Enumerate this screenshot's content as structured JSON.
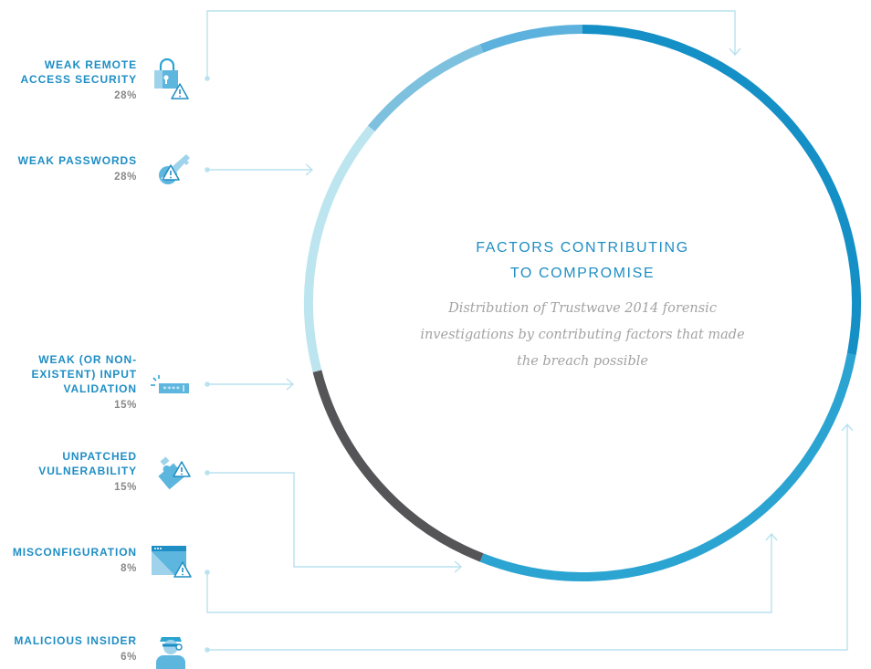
{
  "chart_data": {
    "type": "pie",
    "title": "FACTORS CONTRIBUTING\nTO COMPROMISE",
    "subtitle": "Distribution of Trustwave 2014 forensic\ninvestigations by contributing factors that made\nthe breach possible",
    "slices": [
      {
        "label": "WEAK REMOTE\nACCESS SECURITY",
        "value": 28,
        "display": "28%",
        "color": "#1590c6",
        "icon": "lock-warning-icon"
      },
      {
        "label": "WEAK PASSWORDS",
        "value": 28,
        "display": "28%",
        "color": "#2ba4d2",
        "icon": "key-warning-icon"
      },
      {
        "label": "WEAK (OR NON-\nEXISTENT) INPUT\nVALIDATION",
        "value": 15,
        "display": "15%",
        "color": "#555558",
        "icon": "password-field-icon"
      },
      {
        "label": "UNPATCHED\nVULNERABILITY",
        "value": 15,
        "display": "15%",
        "color": "#bce5ef",
        "icon": "puzzle-warning-icon"
      },
      {
        "label": "MISCONFIGURATION",
        "value": 8,
        "display": "8%",
        "color": "#7ec1df",
        "icon": "window-warning-icon"
      },
      {
        "label": "MALICIOUS INSIDER",
        "value": 6,
        "display": "6%",
        "color": "#5cb2dc",
        "icon": "spy-icon"
      }
    ]
  }
}
